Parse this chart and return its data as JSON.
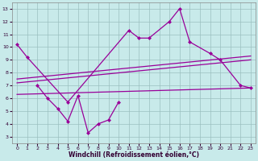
{
  "background_color": "#c8eaea",
  "grid_color": "#9bbfbf",
  "line_color": "#990099",
  "x_ticks": [
    0,
    1,
    2,
    3,
    4,
    5,
    6,
    7,
    8,
    9,
    10,
    11,
    12,
    13,
    14,
    15,
    16,
    17,
    18,
    19,
    20,
    21,
    22,
    23
  ],
  "y_ticks": [
    3,
    4,
    5,
    6,
    7,
    8,
    9,
    10,
    11,
    12,
    13
  ],
  "xlabel": "Windchill (Refroidissement éolien,°C)",
  "xlim": [
    -0.5,
    23.5
  ],
  "ylim": [
    2.5,
    13.5
  ],
  "series1_x": [
    0,
    1,
    5,
    11,
    12,
    13,
    15,
    16,
    17,
    19,
    20,
    22,
    23
  ],
  "series1_y": [
    10.2,
    9.2,
    5.7,
    11.3,
    10.7,
    10.7,
    12.0,
    13.0,
    10.4,
    9.5,
    9.0,
    7.0,
    6.8
  ],
  "series2_x": [
    2,
    3,
    4,
    5,
    6,
    7,
    8,
    9,
    10
  ],
  "series2_y": [
    7.0,
    6.0,
    5.2,
    4.2,
    6.2,
    3.3,
    4.0,
    4.3,
    5.7
  ],
  "line1_x": [
    0,
    23
  ],
  "line1_y": [
    7.2,
    9.0
  ],
  "line2_x": [
    0,
    23
  ],
  "line2_y": [
    7.5,
    9.3
  ],
  "line3_x": [
    0,
    23
  ],
  "line3_y": [
    6.3,
    6.8
  ]
}
